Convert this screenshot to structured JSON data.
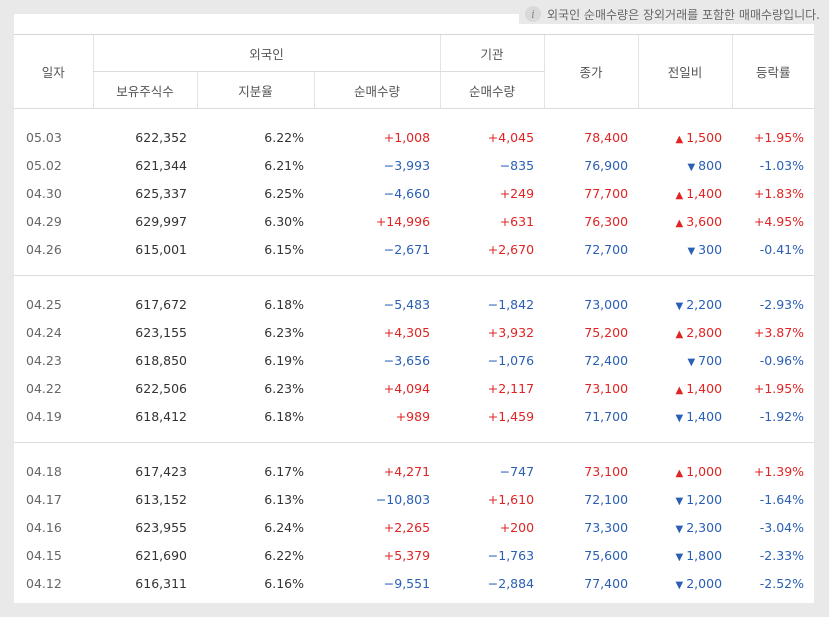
{
  "notice": "외국인 순매수량은 장외거래를 포함한 매매수량입니다.",
  "header": {
    "date": "일자",
    "foreign": "외국인",
    "institution": "기관",
    "close": "종가",
    "change": "전일비",
    "rate": "등락률",
    "holdings": "보유주식수",
    "share": "지분율",
    "foreign_net": "순매수량",
    "inst_net": "순매수량"
  },
  "colors": {
    "up": "#e02424",
    "down": "#2a5fb5"
  },
  "groups": [
    [
      {
        "date": "05.03",
        "hold": "622,352",
        "share": "6.22%",
        "fnet": "+1,008",
        "inet": "+4,045",
        "close": "78,400",
        "chg": "1,500",
        "dir": "up",
        "rate": "+1.95%"
      },
      {
        "date": "05.02",
        "hold": "621,344",
        "share": "6.21%",
        "fnet": "−3,993",
        "inet": "−835",
        "close": "76,900",
        "chg": "800",
        "dir": "down",
        "rate": "-1.03%"
      },
      {
        "date": "04.30",
        "hold": "625,337",
        "share": "6.25%",
        "fnet": "−4,660",
        "inet": "+249",
        "close": "77,700",
        "chg": "1,400",
        "dir": "up",
        "rate": "+1.83%"
      },
      {
        "date": "04.29",
        "hold": "629,997",
        "share": "6.30%",
        "fnet": "+14,996",
        "inet": "+631",
        "close": "76,300",
        "chg": "3,600",
        "dir": "up",
        "rate": "+4.95%"
      },
      {
        "date": "04.26",
        "hold": "615,001",
        "share": "6.15%",
        "fnet": "−2,671",
        "inet": "+2,670",
        "close": "72,700",
        "chg": "300",
        "dir": "down",
        "rate": "-0.41%"
      }
    ],
    [
      {
        "date": "04.25",
        "hold": "617,672",
        "share": "6.18%",
        "fnet": "−5,483",
        "inet": "−1,842",
        "close": "73,000",
        "chg": "2,200",
        "dir": "down",
        "rate": "-2.93%"
      },
      {
        "date": "04.24",
        "hold": "623,155",
        "share": "6.23%",
        "fnet": "+4,305",
        "inet": "+3,932",
        "close": "75,200",
        "chg": "2,800",
        "dir": "up",
        "rate": "+3.87%"
      },
      {
        "date": "04.23",
        "hold": "618,850",
        "share": "6.19%",
        "fnet": "−3,656",
        "inet": "−1,076",
        "close": "72,400",
        "chg": "700",
        "dir": "down",
        "rate": "-0.96%"
      },
      {
        "date": "04.22",
        "hold": "622,506",
        "share": "6.23%",
        "fnet": "+4,094",
        "inet": "+2,117",
        "close": "73,100",
        "chg": "1,400",
        "dir": "up",
        "rate": "+1.95%"
      },
      {
        "date": "04.19",
        "hold": "618,412",
        "share": "6.18%",
        "fnet": "+989",
        "inet": "+1,459",
        "close": "71,700",
        "chg": "1,400",
        "dir": "down",
        "rate": "-1.92%"
      }
    ],
    [
      {
        "date": "04.18",
        "hold": "617,423",
        "share": "6.17%",
        "fnet": "+4,271",
        "inet": "−747",
        "close": "73,100",
        "chg": "1,000",
        "dir": "up",
        "rate": "+1.39%"
      },
      {
        "date": "04.17",
        "hold": "613,152",
        "share": "6.13%",
        "fnet": "−10,803",
        "inet": "+1,610",
        "close": "72,100",
        "chg": "1,200",
        "dir": "down",
        "rate": "-1.64%"
      },
      {
        "date": "04.16",
        "hold": "623,955",
        "share": "6.24%",
        "fnet": "+2,265",
        "inet": "+200",
        "close": "73,300",
        "chg": "2,300",
        "dir": "down",
        "rate": "-3.04%"
      },
      {
        "date": "04.15",
        "hold": "621,690",
        "share": "6.22%",
        "fnet": "+5,379",
        "inet": "−1,763",
        "close": "75,600",
        "chg": "1,800",
        "dir": "down",
        "rate": "-2.33%"
      },
      {
        "date": "04.12",
        "hold": "616,311",
        "share": "6.16%",
        "fnet": "−9,551",
        "inet": "−2,884",
        "close": "77,400",
        "chg": "2,000",
        "dir": "down",
        "rate": "-2.52%"
      }
    ]
  ]
}
